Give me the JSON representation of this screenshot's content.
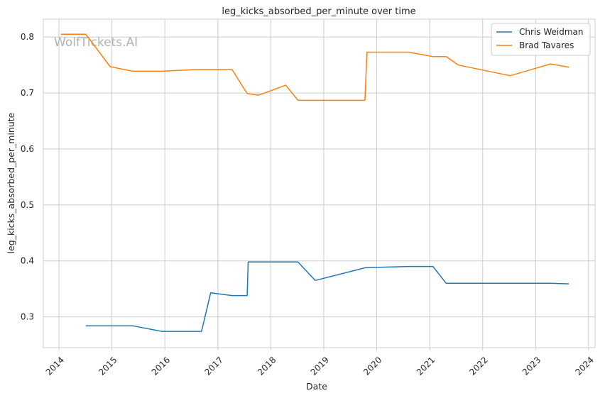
{
  "watermark": "WolfTickets.AI",
  "chart_data": {
    "type": "line",
    "title": "leg_kicks_absorbed_per_minute over time",
    "xlabel": "Date",
    "ylabel": "leg_kicks_absorbed_per_minute",
    "x_type": "date",
    "xlim": [
      "2013-09-15",
      "2024-02-15"
    ],
    "ylim": [
      0.245,
      0.832
    ],
    "x_ticks": [
      "2014",
      "2015",
      "2016",
      "2017",
      "2018",
      "2019",
      "2020",
      "2021",
      "2022",
      "2023",
      "2024"
    ],
    "y_ticks": [
      "0.3",
      "0.4",
      "0.5",
      "0.6",
      "0.7",
      "0.8"
    ],
    "grid": true,
    "legend_position": "top-right",
    "series": [
      {
        "name": "Chris Weidman",
        "color": "#1f77b4",
        "points": [
          {
            "x": "2014-07-05",
            "y": 0.284
          },
          {
            "x": "2015-05-23",
            "y": 0.284
          },
          {
            "x": "2015-12-12",
            "y": 0.274
          },
          {
            "x": "2016-09-10",
            "y": 0.274
          },
          {
            "x": "2016-11-12",
            "y": 0.343
          },
          {
            "x": "2017-04-08",
            "y": 0.338
          },
          {
            "x": "2017-07-22",
            "y": 0.338
          },
          {
            "x": "2017-07-29",
            "y": 0.398
          },
          {
            "x": "2018-07-07",
            "y": 0.398
          },
          {
            "x": "2018-11-03",
            "y": 0.365
          },
          {
            "x": "2019-10-18",
            "y": 0.388
          },
          {
            "x": "2020-08-08",
            "y": 0.39
          },
          {
            "x": "2021-01-23",
            "y": 0.39
          },
          {
            "x": "2021-04-24",
            "y": 0.36
          },
          {
            "x": "2023-04-15",
            "y": 0.36
          },
          {
            "x": "2023-08-19",
            "y": 0.359
          }
        ]
      },
      {
        "name": "Brad Tavares",
        "color": "#ff7f0e",
        "points": [
          {
            "x": "2014-01-15",
            "y": 0.805
          },
          {
            "x": "2014-07-05",
            "y": 0.805
          },
          {
            "x": "2014-12-20",
            "y": 0.747
          },
          {
            "x": "2015-05-23",
            "y": 0.739
          },
          {
            "x": "2015-12-12",
            "y": 0.739
          },
          {
            "x": "2016-07-30",
            "y": 0.742
          },
          {
            "x": "2017-04-08",
            "y": 0.742
          },
          {
            "x": "2017-07-22",
            "y": 0.699
          },
          {
            "x": "2017-10-07",
            "y": 0.696
          },
          {
            "x": "2018-04-14",
            "y": 0.714
          },
          {
            "x": "2018-07-07",
            "y": 0.687
          },
          {
            "x": "2019-10-12",
            "y": 0.687
          },
          {
            "x": "2019-10-26",
            "y": 0.773
          },
          {
            "x": "2020-08-08",
            "y": 0.773
          },
          {
            "x": "2021-01-23",
            "y": 0.765
          },
          {
            "x": "2021-04-24",
            "y": 0.765
          },
          {
            "x": "2021-07-17",
            "y": 0.75
          },
          {
            "x": "2022-07-09",
            "y": 0.731
          },
          {
            "x": "2023-04-15",
            "y": 0.752
          },
          {
            "x": "2023-08-19",
            "y": 0.746
          }
        ]
      }
    ]
  }
}
